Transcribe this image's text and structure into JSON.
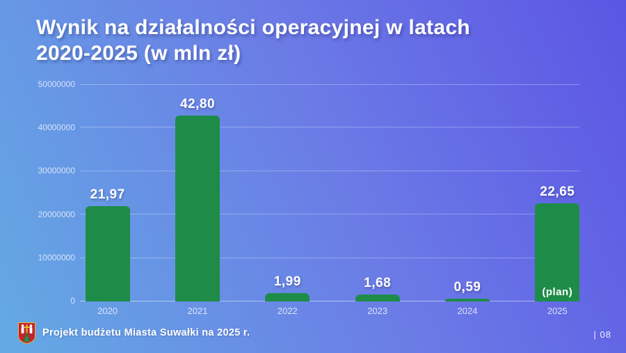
{
  "slide": {
    "title": "Wynik na działalności operacyjnej w latach 2020-2025 (w mln zł)",
    "footer": {
      "text": "Projekt budżetu Miasta Suwałki na 2025 r.",
      "page": "| 08",
      "crest_icon": "suwalki-coat-of-arms"
    }
  },
  "chart_data": {
    "type": "bar",
    "title": "Wynik na działalności operacyjnej w latach 2020-2025 (w mln zł)",
    "categories": [
      "2020",
      "2021",
      "2022",
      "2023",
      "2024",
      "2025"
    ],
    "values_mln": [
      21.97,
      42.8,
      1.99,
      1.68,
      0.59,
      22.65
    ],
    "value_labels": [
      "21,97",
      "42,80",
      "1,99",
      "1,68",
      "0,59",
      "22,65"
    ],
    "annotation": "(plan)",
    "annotation_category": "2025",
    "xlabel": "",
    "ylabel": "",
    "ylim": [
      0,
      50000000
    ],
    "ytick_labels": [
      "50000000",
      "40000000",
      "30000000",
      "20000000",
      "10000000",
      "0"
    ],
    "grid": "horizontal",
    "legend": "none",
    "bar_color": "#1e8c48",
    "background_gradient": [
      "#64aae4",
      "#5b55e4"
    ]
  }
}
